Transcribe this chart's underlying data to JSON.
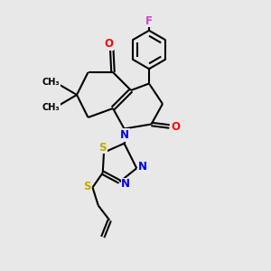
{
  "bg_color": "#e8e8e8",
  "bond_color": "#000000",
  "atom_colors": {
    "F": "#cc44cc",
    "O": "#ff0000",
    "N": "#0000ee",
    "S": "#bbaa00",
    "C": "#000000"
  },
  "line_width": 1.5,
  "figsize": [
    3.0,
    3.0
  ],
  "dpi": 100
}
